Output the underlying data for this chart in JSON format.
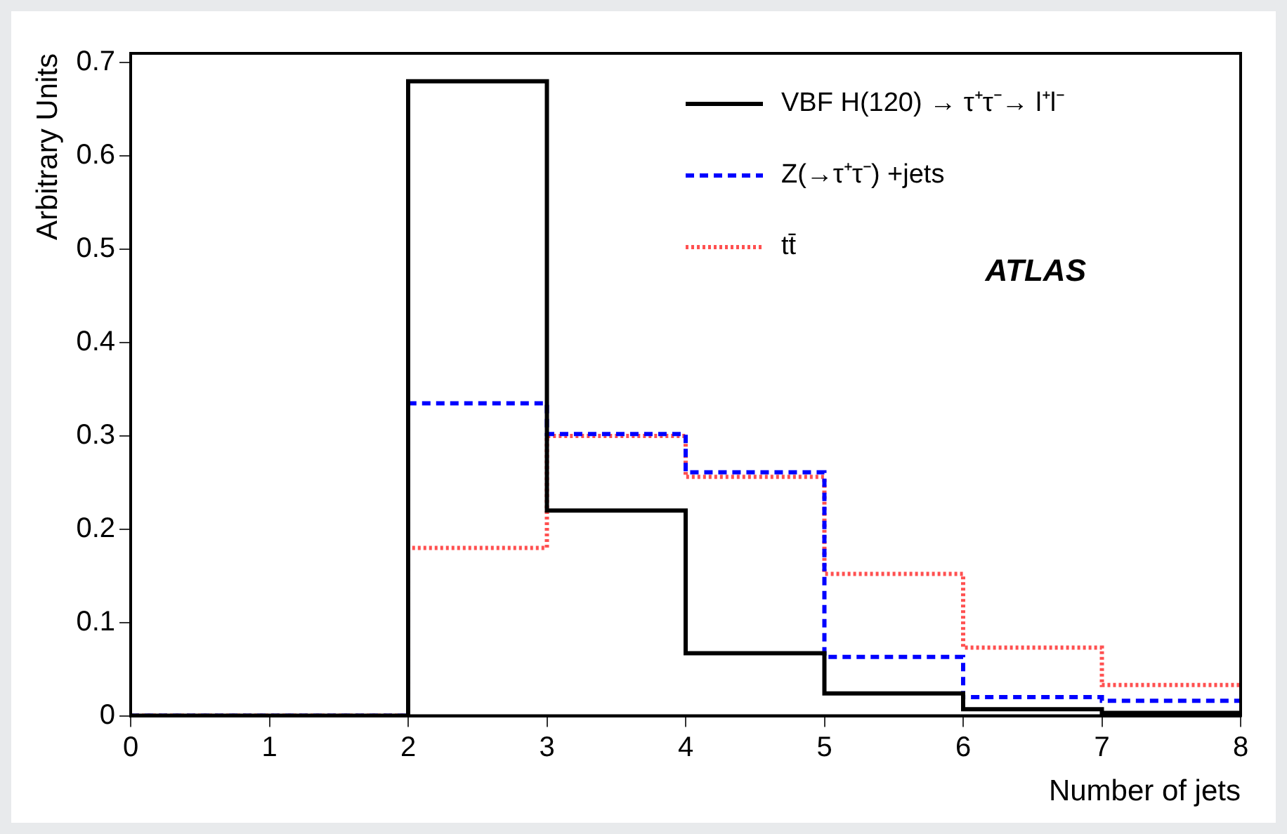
{
  "chart_data": {
    "type": "histogram",
    "xlabel": "Number of jets",
    "ylabel": "Arbitrary Units",
    "bins": [
      0,
      1,
      2,
      3,
      4,
      5,
      6,
      7,
      8
    ],
    "series": [
      {
        "name": "VBF H(120) → τ⁺τ⁻→ l⁺l⁻",
        "color": "#000000",
        "line_style": "solid",
        "values": [
          0,
          0,
          0.68,
          0.22,
          0.067,
          0.024,
          0.007,
          0.003
        ]
      },
      {
        "name": "Z(→τ⁺τ⁻) +jets",
        "color": "#0000ff",
        "line_style": "dashed",
        "values": [
          0,
          0,
          0.335,
          0.302,
          0.261,
          0.063,
          0.02,
          0.016
        ]
      },
      {
        "name": "tt̄",
        "color": "#ff5050",
        "line_style": "dotted",
        "values": [
          0,
          0,
          0.18,
          0.3,
          0.256,
          0.152,
          0.073,
          0.033
        ]
      }
    ],
    "xlim": [
      0,
      8
    ],
    "xticks": [
      0,
      1,
      2,
      3,
      4,
      5,
      6,
      7,
      8
    ],
    "ylim": [
      0,
      0.71
    ],
    "yticks": [
      0,
      0.1,
      0.2,
      0.3,
      0.4,
      0.5,
      0.6,
      0.7
    ],
    "legend": "top right",
    "annotations": [
      "ATLAS"
    ]
  }
}
